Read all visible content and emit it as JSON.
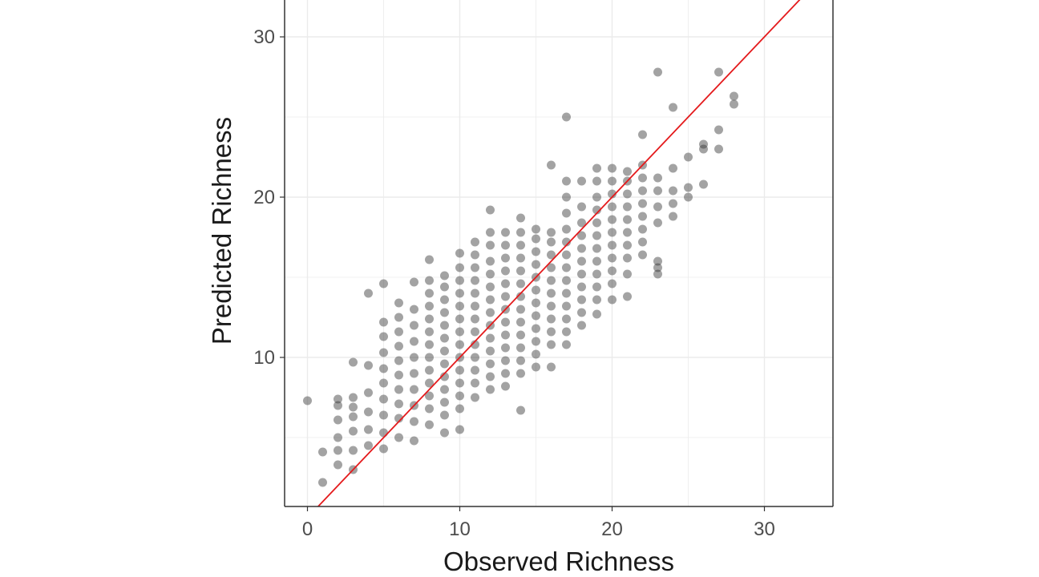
{
  "chart_data": {
    "type": "scatter",
    "title": "",
    "xlabel": "Observed Richness",
    "ylabel": "Predicted Richness",
    "xlim": [
      -1.5,
      34.5
    ],
    "ylim": [
      0.7,
      32.3
    ],
    "x_ticks": [
      0,
      10,
      20,
      30
    ],
    "y_ticks": [
      10,
      20,
      30
    ],
    "grid": true,
    "point_color": "#333333",
    "point_opacity": 0.45,
    "fit_line": {
      "color": "#e41a1c",
      "intercept": 0,
      "slope": 1
    },
    "points": [
      {
        "x": 0,
        "y": 7.3
      },
      {
        "x": 1,
        "y": 2.2
      },
      {
        "x": 1,
        "y": 4.1
      },
      {
        "x": 2,
        "y": 3.3
      },
      {
        "x": 2,
        "y": 4.2
      },
      {
        "x": 2,
        "y": 5.0
      },
      {
        "x": 2,
        "y": 6.1
      },
      {
        "x": 2,
        "y": 7.0
      },
      {
        "x": 2,
        "y": 7.4
      },
      {
        "x": 3,
        "y": 3.0
      },
      {
        "x": 3,
        "y": 4.2
      },
      {
        "x": 3,
        "y": 5.4
      },
      {
        "x": 3,
        "y": 6.3
      },
      {
        "x": 3,
        "y": 6.9
      },
      {
        "x": 3,
        "y": 7.5
      },
      {
        "x": 3,
        "y": 9.7
      },
      {
        "x": 4,
        "y": 4.5
      },
      {
        "x": 4,
        "y": 5.5
      },
      {
        "x": 4,
        "y": 6.6
      },
      {
        "x": 4,
        "y": 7.8
      },
      {
        "x": 4,
        "y": 9.5
      },
      {
        "x": 4,
        "y": 14.0
      },
      {
        "x": 5,
        "y": 4.3
      },
      {
        "x": 5,
        "y": 5.3
      },
      {
        "x": 5,
        "y": 6.4
      },
      {
        "x": 5,
        "y": 7.4
      },
      {
        "x": 5,
        "y": 8.4
      },
      {
        "x": 5,
        "y": 9.3
      },
      {
        "x": 5,
        "y": 10.3
      },
      {
        "x": 5,
        "y": 11.3
      },
      {
        "x": 5,
        "y": 12.2
      },
      {
        "x": 5,
        "y": 14.6
      },
      {
        "x": 6,
        "y": 5.0
      },
      {
        "x": 6,
        "y": 6.2
      },
      {
        "x": 6,
        "y": 7.1
      },
      {
        "x": 6,
        "y": 8.0
      },
      {
        "x": 6,
        "y": 8.9
      },
      {
        "x": 6,
        "y": 9.8
      },
      {
        "x": 6,
        "y": 10.7
      },
      {
        "x": 6,
        "y": 11.6
      },
      {
        "x": 6,
        "y": 12.5
      },
      {
        "x": 6,
        "y": 13.4
      },
      {
        "x": 7,
        "y": 4.8
      },
      {
        "x": 7,
        "y": 6.0
      },
      {
        "x": 7,
        "y": 7.0
      },
      {
        "x": 7,
        "y": 8.0
      },
      {
        "x": 7,
        "y": 9.0
      },
      {
        "x": 7,
        "y": 10.0
      },
      {
        "x": 7,
        "y": 11.0
      },
      {
        "x": 7,
        "y": 12.0
      },
      {
        "x": 7,
        "y": 13.0
      },
      {
        "x": 7,
        "y": 14.7
      },
      {
        "x": 8,
        "y": 5.8
      },
      {
        "x": 8,
        "y": 6.8
      },
      {
        "x": 8,
        "y": 7.6
      },
      {
        "x": 8,
        "y": 8.4
      },
      {
        "x": 8,
        "y": 9.2
      },
      {
        "x": 8,
        "y": 10.0
      },
      {
        "x": 8,
        "y": 10.8
      },
      {
        "x": 8,
        "y": 11.6
      },
      {
        "x": 8,
        "y": 12.4
      },
      {
        "x": 8,
        "y": 13.2
      },
      {
        "x": 8,
        "y": 14.0
      },
      {
        "x": 8,
        "y": 14.8
      },
      {
        "x": 8,
        "y": 16.1
      },
      {
        "x": 9,
        "y": 5.3
      },
      {
        "x": 9,
        "y": 6.4
      },
      {
        "x": 9,
        "y": 7.2
      },
      {
        "x": 9,
        "y": 8.0
      },
      {
        "x": 9,
        "y": 8.8
      },
      {
        "x": 9,
        "y": 9.6
      },
      {
        "x": 9,
        "y": 10.4
      },
      {
        "x": 9,
        "y": 11.2
      },
      {
        "x": 9,
        "y": 12.0
      },
      {
        "x": 9,
        "y": 12.8
      },
      {
        "x": 9,
        "y": 13.6
      },
      {
        "x": 9,
        "y": 14.4
      },
      {
        "x": 9,
        "y": 15.1
      },
      {
        "x": 10,
        "y": 5.5
      },
      {
        "x": 10,
        "y": 6.8
      },
      {
        "x": 10,
        "y": 7.6
      },
      {
        "x": 10,
        "y": 8.4
      },
      {
        "x": 10,
        "y": 9.2
      },
      {
        "x": 10,
        "y": 10.0
      },
      {
        "x": 10,
        "y": 10.8
      },
      {
        "x": 10,
        "y": 11.6
      },
      {
        "x": 10,
        "y": 12.4
      },
      {
        "x": 10,
        "y": 13.2
      },
      {
        "x": 10,
        "y": 14.0
      },
      {
        "x": 10,
        "y": 14.8
      },
      {
        "x": 10,
        "y": 15.6
      },
      {
        "x": 10,
        "y": 16.5
      },
      {
        "x": 11,
        "y": 7.5
      },
      {
        "x": 11,
        "y": 8.4
      },
      {
        "x": 11,
        "y": 9.2
      },
      {
        "x": 11,
        "y": 10.0
      },
      {
        "x": 11,
        "y": 10.8
      },
      {
        "x": 11,
        "y": 11.6
      },
      {
        "x": 11,
        "y": 12.4
      },
      {
        "x": 11,
        "y": 13.2
      },
      {
        "x": 11,
        "y": 14.0
      },
      {
        "x": 11,
        "y": 14.8
      },
      {
        "x": 11,
        "y": 15.6
      },
      {
        "x": 11,
        "y": 16.4
      },
      {
        "x": 11,
        "y": 17.2
      },
      {
        "x": 12,
        "y": 8.0
      },
      {
        "x": 12,
        "y": 8.8
      },
      {
        "x": 12,
        "y": 9.6
      },
      {
        "x": 12,
        "y": 10.4
      },
      {
        "x": 12,
        "y": 11.2
      },
      {
        "x": 12,
        "y": 12.0
      },
      {
        "x": 12,
        "y": 12.8
      },
      {
        "x": 12,
        "y": 13.6
      },
      {
        "x": 12,
        "y": 14.4
      },
      {
        "x": 12,
        "y": 15.2
      },
      {
        "x": 12,
        "y": 16.0
      },
      {
        "x": 12,
        "y": 17.0
      },
      {
        "x": 12,
        "y": 17.8
      },
      {
        "x": 12,
        "y": 19.2
      },
      {
        "x": 13,
        "y": 8.2
      },
      {
        "x": 13,
        "y": 9.0
      },
      {
        "x": 13,
        "y": 9.8
      },
      {
        "x": 13,
        "y": 10.6
      },
      {
        "x": 13,
        "y": 11.4
      },
      {
        "x": 13,
        "y": 12.2
      },
      {
        "x": 13,
        "y": 13.0
      },
      {
        "x": 13,
        "y": 13.8
      },
      {
        "x": 13,
        "y": 14.6
      },
      {
        "x": 13,
        "y": 15.4
      },
      {
        "x": 13,
        "y": 16.2
      },
      {
        "x": 13,
        "y": 17.0
      },
      {
        "x": 13,
        "y": 17.8
      },
      {
        "x": 14,
        "y": 6.7
      },
      {
        "x": 14,
        "y": 9.0
      },
      {
        "x": 14,
        "y": 9.8
      },
      {
        "x": 14,
        "y": 10.6
      },
      {
        "x": 14,
        "y": 11.4
      },
      {
        "x": 14,
        "y": 12.2
      },
      {
        "x": 14,
        "y": 13.0
      },
      {
        "x": 14,
        "y": 13.8
      },
      {
        "x": 14,
        "y": 14.6
      },
      {
        "x": 14,
        "y": 15.4
      },
      {
        "x": 14,
        "y": 16.2
      },
      {
        "x": 14,
        "y": 17.0
      },
      {
        "x": 14,
        "y": 17.8
      },
      {
        "x": 14,
        "y": 18.7
      },
      {
        "x": 15,
        "y": 9.4
      },
      {
        "x": 15,
        "y": 10.2
      },
      {
        "x": 15,
        "y": 11.0
      },
      {
        "x": 15,
        "y": 11.8
      },
      {
        "x": 15,
        "y": 12.6
      },
      {
        "x": 15,
        "y": 13.4
      },
      {
        "x": 15,
        "y": 14.2
      },
      {
        "x": 15,
        "y": 15.0
      },
      {
        "x": 15,
        "y": 15.8
      },
      {
        "x": 15,
        "y": 16.6
      },
      {
        "x": 15,
        "y": 17.4
      },
      {
        "x": 15,
        "y": 18.0
      },
      {
        "x": 16,
        "y": 9.4
      },
      {
        "x": 16,
        "y": 10.8
      },
      {
        "x": 16,
        "y": 11.6
      },
      {
        "x": 16,
        "y": 12.4
      },
      {
        "x": 16,
        "y": 13.2
      },
      {
        "x": 16,
        "y": 14.0
      },
      {
        "x": 16,
        "y": 14.8
      },
      {
        "x": 16,
        "y": 15.6
      },
      {
        "x": 16,
        "y": 16.4
      },
      {
        "x": 16,
        "y": 17.2
      },
      {
        "x": 16,
        "y": 17.8
      },
      {
        "x": 16,
        "y": 22.0
      },
      {
        "x": 17,
        "y": 10.8
      },
      {
        "x": 17,
        "y": 11.6
      },
      {
        "x": 17,
        "y": 12.4
      },
      {
        "x": 17,
        "y": 13.2
      },
      {
        "x": 17,
        "y": 14.0
      },
      {
        "x": 17,
        "y": 14.8
      },
      {
        "x": 17,
        "y": 15.6
      },
      {
        "x": 17,
        "y": 16.4
      },
      {
        "x": 17,
        "y": 17.2
      },
      {
        "x": 17,
        "y": 18.0
      },
      {
        "x": 17,
        "y": 19.0
      },
      {
        "x": 17,
        "y": 20.0
      },
      {
        "x": 17,
        "y": 21.0
      },
      {
        "x": 17,
        "y": 25.0
      },
      {
        "x": 18,
        "y": 12.0
      },
      {
        "x": 18,
        "y": 12.8
      },
      {
        "x": 18,
        "y": 13.6
      },
      {
        "x": 18,
        "y": 14.4
      },
      {
        "x": 18,
        "y": 15.2
      },
      {
        "x": 18,
        "y": 16.0
      },
      {
        "x": 18,
        "y": 16.8
      },
      {
        "x": 18,
        "y": 17.6
      },
      {
        "x": 18,
        "y": 18.4
      },
      {
        "x": 18,
        "y": 19.4
      },
      {
        "x": 18,
        "y": 21.0
      },
      {
        "x": 19,
        "y": 12.7
      },
      {
        "x": 19,
        "y": 13.6
      },
      {
        "x": 19,
        "y": 14.4
      },
      {
        "x": 19,
        "y": 15.2
      },
      {
        "x": 19,
        "y": 16.0
      },
      {
        "x": 19,
        "y": 16.8
      },
      {
        "x": 19,
        "y": 17.6
      },
      {
        "x": 19,
        "y": 18.4
      },
      {
        "x": 19,
        "y": 19.2
      },
      {
        "x": 19,
        "y": 20.0
      },
      {
        "x": 19,
        "y": 21.0
      },
      {
        "x": 19,
        "y": 21.8
      },
      {
        "x": 20,
        "y": 13.6
      },
      {
        "x": 20,
        "y": 14.6
      },
      {
        "x": 20,
        "y": 15.4
      },
      {
        "x": 20,
        "y": 16.2
      },
      {
        "x": 20,
        "y": 17.0
      },
      {
        "x": 20,
        "y": 17.8
      },
      {
        "x": 20,
        "y": 18.6
      },
      {
        "x": 20,
        "y": 19.4
      },
      {
        "x": 20,
        "y": 20.2
      },
      {
        "x": 20,
        "y": 21.0
      },
      {
        "x": 20,
        "y": 21.8
      },
      {
        "x": 21,
        "y": 13.8
      },
      {
        "x": 21,
        "y": 15.2
      },
      {
        "x": 21,
        "y": 16.2
      },
      {
        "x": 21,
        "y": 17.0
      },
      {
        "x": 21,
        "y": 17.8
      },
      {
        "x": 21,
        "y": 18.6
      },
      {
        "x": 21,
        "y": 19.4
      },
      {
        "x": 21,
        "y": 20.2
      },
      {
        "x": 21,
        "y": 21.0
      },
      {
        "x": 21,
        "y": 21.6
      },
      {
        "x": 22,
        "y": 16.4
      },
      {
        "x": 22,
        "y": 17.2
      },
      {
        "x": 22,
        "y": 18.0
      },
      {
        "x": 22,
        "y": 18.8
      },
      {
        "x": 22,
        "y": 19.6
      },
      {
        "x": 22,
        "y": 20.4
      },
      {
        "x": 22,
        "y": 21.2
      },
      {
        "x": 22,
        "y": 22.0
      },
      {
        "x": 22,
        "y": 23.9
      },
      {
        "x": 23,
        "y": 15.2
      },
      {
        "x": 23,
        "y": 15.6
      },
      {
        "x": 23,
        "y": 16.0
      },
      {
        "x": 23,
        "y": 18.4
      },
      {
        "x": 23,
        "y": 19.4
      },
      {
        "x": 23,
        "y": 20.4
      },
      {
        "x": 23,
        "y": 21.2
      },
      {
        "x": 23,
        "y": 27.8
      },
      {
        "x": 24,
        "y": 18.8
      },
      {
        "x": 24,
        "y": 19.6
      },
      {
        "x": 24,
        "y": 20.4
      },
      {
        "x": 24,
        "y": 21.8
      },
      {
        "x": 24,
        "y": 25.6
      },
      {
        "x": 25,
        "y": 20.0
      },
      {
        "x": 25,
        "y": 20.6
      },
      {
        "x": 25,
        "y": 22.5
      },
      {
        "x": 26,
        "y": 20.8
      },
      {
        "x": 26,
        "y": 23.0
      },
      {
        "x": 26,
        "y": 23.3
      },
      {
        "x": 27,
        "y": 23.0
      },
      {
        "x": 27,
        "y": 24.2
      },
      {
        "x": 27,
        "y": 27.8
      },
      {
        "x": 28,
        "y": 25.8
      },
      {
        "x": 28,
        "y": 26.3
      }
    ]
  }
}
